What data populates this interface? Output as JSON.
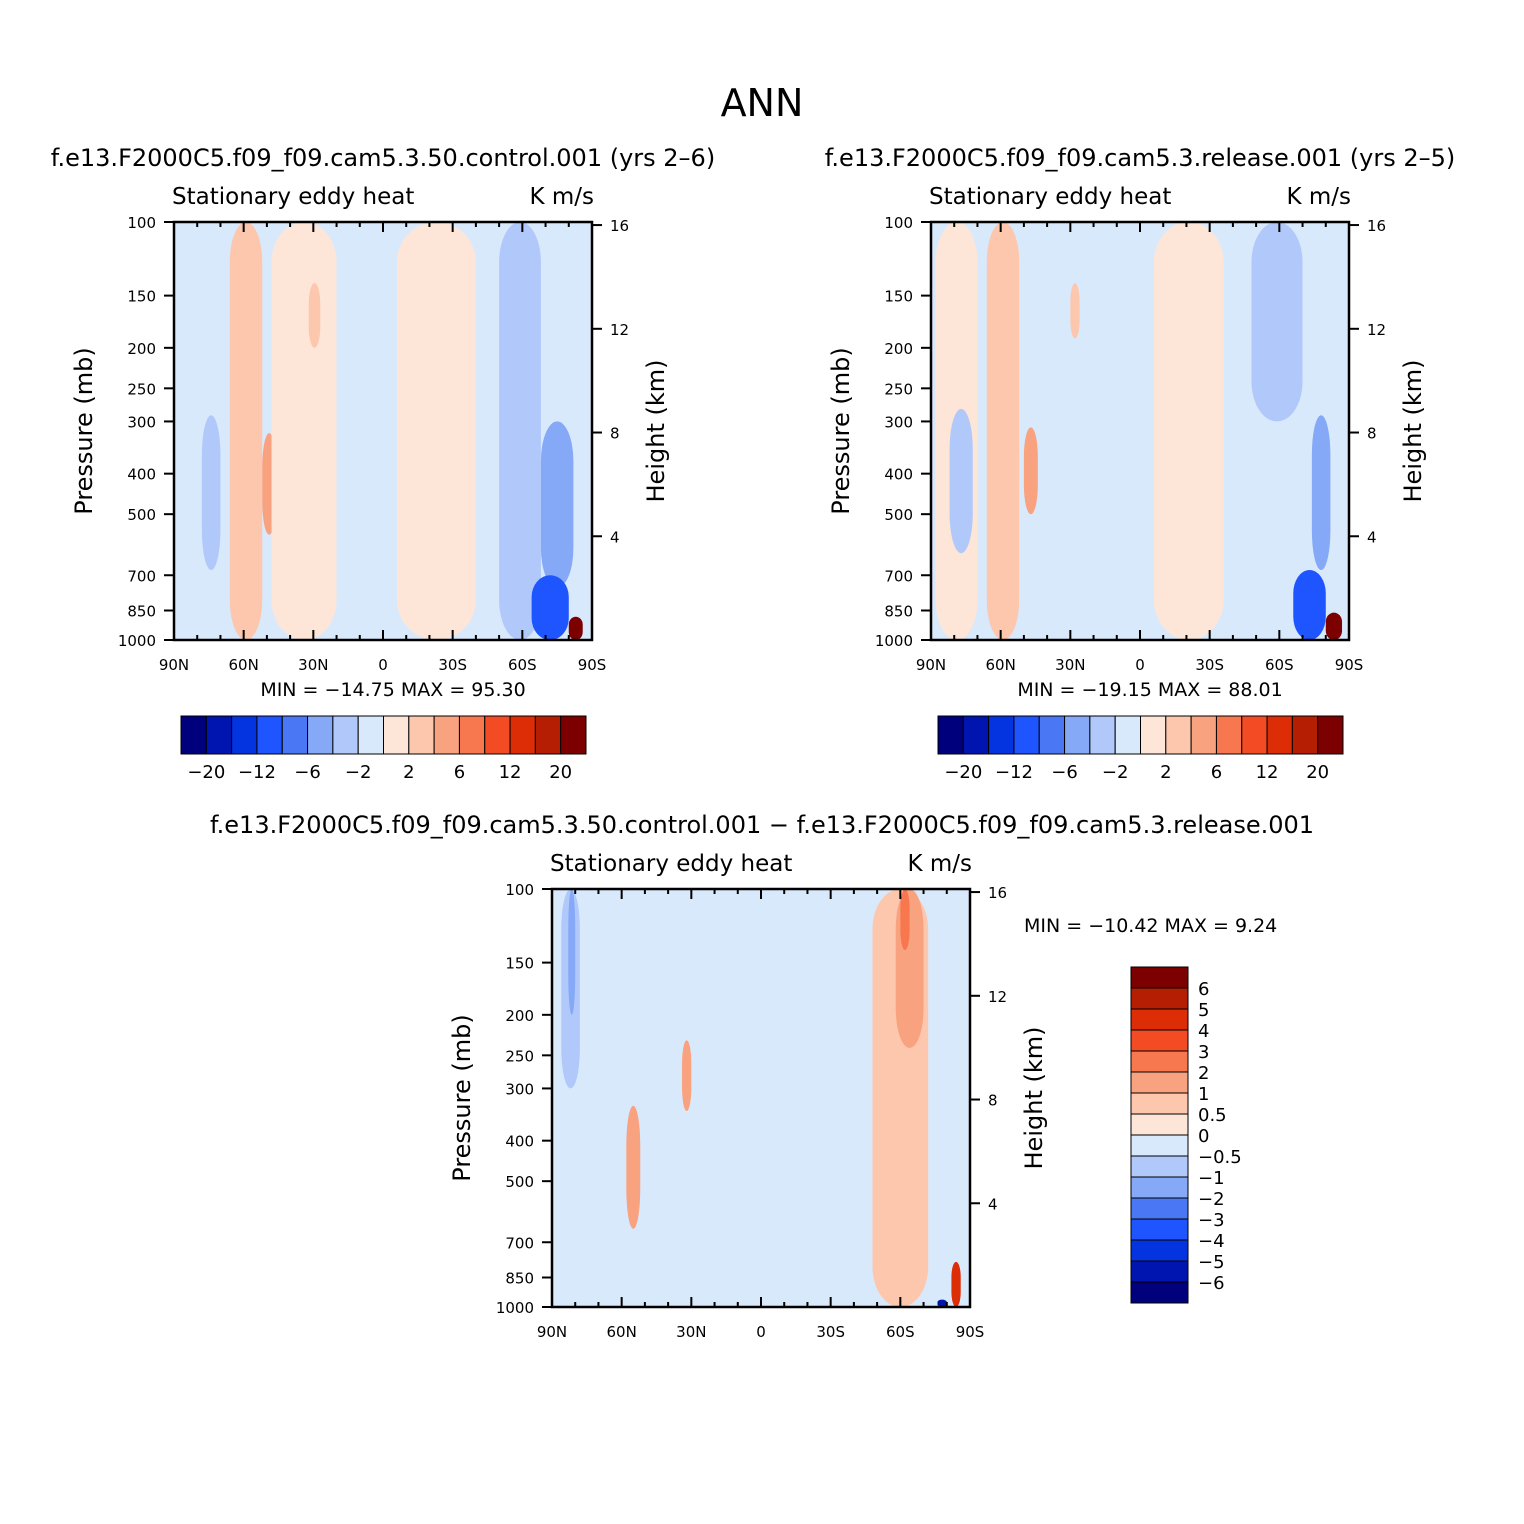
{
  "figure": {
    "title": "ANN"
  },
  "panels": [
    {
      "id": "p1",
      "title": "f.e13.F2000C5.f09_f09.cam5.3.50.control.001 (yrs 2–6)",
      "left_label": "Stationary eddy heat",
      "right_label": "K m/s",
      "ylabel": "Pressure (mb)",
      "y2label": "Height (km)",
      "stats": "MIN = −14.75   MAX =  95.30"
    },
    {
      "id": "p2",
      "title": "f.e13.F2000C5.f09_f09.cam5.3.release.001 (yrs 2–5)",
      "left_label": "Stationary eddy heat",
      "right_label": "K m/s",
      "ylabel": "Pressure (mb)",
      "y2label": "Height (km)",
      "stats": "MIN = −19.15   MAX =  88.01"
    },
    {
      "id": "p3",
      "title": "f.e13.F2000C5.f09_f09.cam5.3.50.control.001 − f.e13.F2000C5.f09_f09.cam5.3.release.001",
      "left_label": "Stationary eddy heat",
      "right_label": "K m/s",
      "ylabel": "Pressure (mb)",
      "y2label": "Height (km)",
      "stats": "MIN = −10.42   MAX =    9.24"
    }
  ],
  "colorbars": {
    "abs_colors": [
      "#00007d",
      "#0015b0",
      "#0433e0",
      "#1f55ff",
      "#4a78f5",
      "#85a8f7",
      "#b1c9fa",
      "#d9e9fc",
      "#fde6d8",
      "#fdc7ae",
      "#f9a280",
      "#f7784f",
      "#f34b24",
      "#dd2d06",
      "#b51e02",
      "#7c0000"
    ],
    "abs_labels": [
      "−20",
      "−12",
      "−6",
      "−2",
      "2",
      "6",
      "12",
      "20"
    ],
    "diff_colors": [
      "#7c0000",
      "#b51e02",
      "#dd2d06",
      "#f34b24",
      "#f7784f",
      "#f9a280",
      "#fdc7ae",
      "#fde6d8",
      "#d9e9fc",
      "#b1c9fa",
      "#85a8f7",
      "#4a78f5",
      "#1f55ff",
      "#0433e0",
      "#0015b0",
      "#00007d"
    ],
    "diff_labels": [
      "6",
      "5",
      "4",
      "3",
      "2",
      "1",
      "0.5",
      "0",
      "−0.5",
      "−1",
      "−2",
      "−3",
      "−4",
      "−5",
      "−6"
    ]
  },
  "chart_data": [
    {
      "type": "heatmap",
      "title": "f.e13.F2000C5.f09_f09.cam5.3.50.control.001 (yrs 2–6)",
      "xlabel": "",
      "ylabel": "Pressure (mb)",
      "y2label": "Height (km)",
      "units": "K m/s",
      "x_ticks": [
        "90N",
        "60N",
        "30N",
        "0",
        "30S",
        "60S",
        "90S"
      ],
      "x_range": [
        90,
        -90
      ],
      "y_ticks": [
        100,
        150,
        200,
        250,
        300,
        400,
        500,
        700,
        850,
        1000
      ],
      "y_range": [
        100,
        1000
      ],
      "y_scale": "log",
      "y2_ticks": [
        4,
        8,
        12,
        16
      ],
      "min": -14.75,
      "max": 95.3,
      "levels": [
        -20,
        -16,
        -12,
        -9,
        -6,
        -4,
        -2,
        0,
        2,
        4,
        6,
        9,
        12,
        16,
        20
      ],
      "features": [
        {
          "lat": [
            75,
            88
          ],
          "p": [
            100,
            1000
          ],
          "value": -1
        },
        {
          "lat": [
            70,
            78
          ],
          "p": [
            290,
            680
          ],
          "value": -3
        },
        {
          "lat": [
            52,
            66
          ],
          "p": [
            100,
            1000
          ],
          "value": 3
        },
        {
          "lat": [
            46,
            52
          ],
          "p": [
            320,
            560
          ],
          "value": 5
        },
        {
          "lat": [
            20,
            48
          ],
          "p": [
            100,
            1000
          ],
          "value": 1
        },
        {
          "lat": [
            27,
            32
          ],
          "p": [
            140,
            200
          ],
          "value": 3
        },
        {
          "lat": [
            -6,
            20
          ],
          "p": [
            100,
            1000
          ],
          "value": -1
        },
        {
          "lat": [
            -40,
            -6
          ],
          "p": [
            100,
            1000
          ],
          "value": 1
        },
        {
          "lat": [
            -68,
            -50
          ],
          "p": [
            100,
            1000
          ],
          "value": -3
        },
        {
          "lat": [
            -82,
            -68
          ],
          "p": [
            300,
            750
          ],
          "value": -6
        },
        {
          "lat": [
            -80,
            -64
          ],
          "p": [
            700,
            1000
          ],
          "value": -12
        },
        {
          "lat": [
            -86,
            -80
          ],
          "p": [
            880,
            1000
          ],
          "value": 20
        }
      ]
    },
    {
      "type": "heatmap",
      "title": "f.e13.F2000C5.f09_f09.cam5.3.release.001 (yrs 2–5)",
      "xlabel": "",
      "ylabel": "Pressure (mb)",
      "y2label": "Height (km)",
      "units": "K m/s",
      "x_ticks": [
        "90N",
        "60N",
        "30N",
        "0",
        "30S",
        "60S",
        "90S"
      ],
      "x_range": [
        90,
        -90
      ],
      "y_ticks": [
        100,
        150,
        200,
        250,
        300,
        400,
        500,
        700,
        850,
        1000
      ],
      "y_range": [
        100,
        1000
      ],
      "y_scale": "log",
      "y2_ticks": [
        4,
        8,
        12,
        16
      ],
      "min": -19.15,
      "max": 88.01,
      "levels": [
        -20,
        -16,
        -12,
        -9,
        -6,
        -4,
        -2,
        0,
        2,
        4,
        6,
        9,
        12,
        16,
        20
      ],
      "features": [
        {
          "lat": [
            70,
            88
          ],
          "p": [
            100,
            1000
          ],
          "value": 1
        },
        {
          "lat": [
            72,
            82
          ],
          "p": [
            280,
            620
          ],
          "value": -3
        },
        {
          "lat": [
            52,
            66
          ],
          "p": [
            100,
            1000
          ],
          "value": 3
        },
        {
          "lat": [
            44,
            50
          ],
          "p": [
            310,
            500
          ],
          "value": 5
        },
        {
          "lat": [
            26,
            30
          ],
          "p": [
            140,
            190
          ],
          "value": 3
        },
        {
          "lat": [
            0,
            24
          ],
          "p": [
            100,
            1000
          ],
          "value": -1
        },
        {
          "lat": [
            -36,
            -6
          ],
          "p": [
            100,
            1000
          ],
          "value": 1
        },
        {
          "lat": [
            -70,
            -48
          ],
          "p": [
            100,
            300
          ],
          "value": -3
        },
        {
          "lat": [
            -82,
            -74
          ],
          "p": [
            290,
            680
          ],
          "value": -6
        },
        {
          "lat": [
            -80,
            -66
          ],
          "p": [
            680,
            1000
          ],
          "value": -12
        },
        {
          "lat": [
            -87,
            -80
          ],
          "p": [
            860,
            1000
          ],
          "value": 20
        }
      ]
    },
    {
      "type": "heatmap",
      "title": "f.e13.F2000C5.f09_f09.cam5.3.50.control.001 − f.e13.F2000C5.f09_f09.cam5.3.release.001",
      "xlabel": "",
      "ylabel": "Pressure (mb)",
      "y2label": "Height (km)",
      "units": "K m/s",
      "x_ticks": [
        "90N",
        "60N",
        "30N",
        "0",
        "30S",
        "60S",
        "90S"
      ],
      "x_range": [
        90,
        -90
      ],
      "y_ticks": [
        100,
        150,
        200,
        250,
        300,
        400,
        500,
        700,
        850,
        1000
      ],
      "y_range": [
        100,
        1000
      ],
      "y_scale": "log",
      "y2_ticks": [
        4,
        8,
        12,
        16
      ],
      "min": -10.42,
      "max": 9.24,
      "levels": [
        -6,
        -5,
        -4,
        -3,
        -2,
        -1,
        -0.5,
        0,
        0.5,
        1,
        2,
        3,
        4,
        5,
        6
      ],
      "features": [
        {
          "lat": [
            78,
            86
          ],
          "p": [
            100,
            300
          ],
          "value": -1
        },
        {
          "lat": [
            80,
            83
          ],
          "p": [
            100,
            200
          ],
          "value": -2
        },
        {
          "lat": [
            52,
            58
          ],
          "p": [
            330,
            650
          ],
          "value": 1
        },
        {
          "lat": [
            30,
            34
          ],
          "p": [
            230,
            340
          ],
          "value": 1
        },
        {
          "lat": [
            -48,
            -72
          ],
          "p": [
            100,
            1000
          ],
          "value": 0.5
        },
        {
          "lat": [
            -58,
            -70
          ],
          "p": [
            100,
            240
          ],
          "value": 1
        },
        {
          "lat": [
            -60,
            -64
          ],
          "p": [
            100,
            140
          ],
          "value": 2
        },
        {
          "lat": [
            -82,
            -86
          ],
          "p": [
            780,
            1000
          ],
          "value": 4
        },
        {
          "lat": [
            -76,
            -80
          ],
          "p": [
            960,
            1000
          ],
          "value": -6
        }
      ]
    }
  ]
}
